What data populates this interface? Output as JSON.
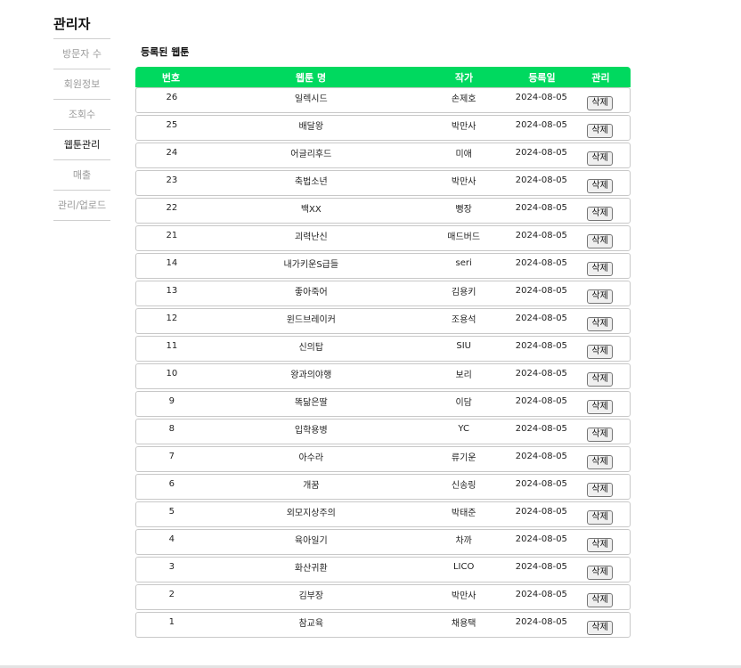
{
  "admin": {
    "title": "관리자"
  },
  "sidebar": {
    "items": [
      {
        "label": "방문자 수",
        "active": false
      },
      {
        "label": "회원정보",
        "active": false
      },
      {
        "label": "조회수",
        "active": false
      },
      {
        "label": "웹툰관리",
        "active": true
      },
      {
        "label": "매출",
        "active": false
      },
      {
        "label": "관리/업로드",
        "active": false
      }
    ]
  },
  "section": {
    "title": "등록된 웹툰"
  },
  "table": {
    "headers": {
      "num": "번호",
      "title": "웹툰 명",
      "author": "작가",
      "date": "등록일",
      "manage": "관리"
    },
    "delete_label": "삭제",
    "rows": [
      {
        "num": "26",
        "title": "일렉시드",
        "author": "손제호",
        "date": "2024-08-05"
      },
      {
        "num": "25",
        "title": "배달왕",
        "author": "박만사",
        "date": "2024-08-05"
      },
      {
        "num": "24",
        "title": "어글리후드",
        "author": "미애",
        "date": "2024-08-05"
      },
      {
        "num": "23",
        "title": "축법소년",
        "author": "박만사",
        "date": "2024-08-05"
      },
      {
        "num": "22",
        "title": "백XX",
        "author": "뻥장",
        "date": "2024-08-05"
      },
      {
        "num": "21",
        "title": "괴력난신",
        "author": "매드버드",
        "date": "2024-08-05"
      },
      {
        "num": "14",
        "title": "내가키운S급들",
        "author": "seri",
        "date": "2024-08-05"
      },
      {
        "num": "13",
        "title": "좋아죽어",
        "author": "김용키",
        "date": "2024-08-05"
      },
      {
        "num": "12",
        "title": "윈드브레이커",
        "author": "조용석",
        "date": "2024-08-05"
      },
      {
        "num": "11",
        "title": "신의탑",
        "author": "SIU",
        "date": "2024-08-05"
      },
      {
        "num": "10",
        "title": "왕과의야행",
        "author": "보리",
        "date": "2024-08-05"
      },
      {
        "num": "9",
        "title": "똑닮은딸",
        "author": "이담",
        "date": "2024-08-05"
      },
      {
        "num": "8",
        "title": "입학용병",
        "author": "YC",
        "date": "2024-08-05"
      },
      {
        "num": "7",
        "title": "아수라",
        "author": "류기운",
        "date": "2024-08-05"
      },
      {
        "num": "6",
        "title": "개꿈",
        "author": "신송링",
        "date": "2024-08-05"
      },
      {
        "num": "5",
        "title": "외모지상주의",
        "author": "박태준",
        "date": "2024-08-05"
      },
      {
        "num": "4",
        "title": "육아일기",
        "author": "차까",
        "date": "2024-08-05"
      },
      {
        "num": "3",
        "title": "화산귀환",
        "author": "LICO",
        "date": "2024-08-05"
      },
      {
        "num": "2",
        "title": "김부장",
        "author": "박만사",
        "date": "2024-08-05"
      },
      {
        "num": "1",
        "title": "참교육",
        "author": "채용택",
        "date": "2024-08-05"
      }
    ]
  }
}
